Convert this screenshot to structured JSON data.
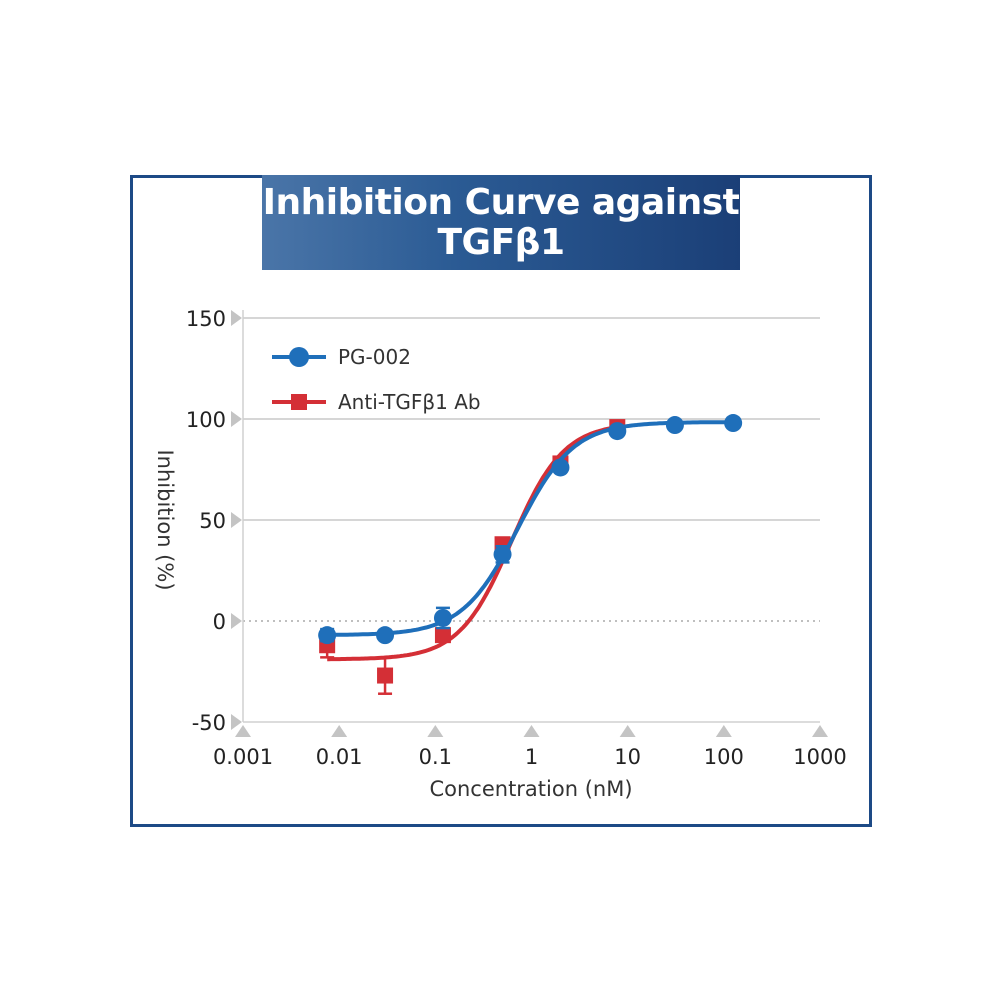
{
  "chart_data": {
    "type": "line",
    "title": "Inhibition Curve against TGFβ1",
    "title_lines": [
      "Inhibition Curve against",
      "TGFβ1"
    ],
    "xlabel": "Concentration (nM)",
    "ylabel": "Inhibition (%)",
    "x_scale": "log",
    "xlim": [
      0.001,
      1000
    ],
    "ylim": [
      -50,
      150
    ],
    "x_ticks": [
      0.001,
      0.01,
      0.1,
      1,
      10,
      100,
      1000
    ],
    "x_tick_labels": [
      "0.001",
      "0.01",
      "0.1",
      "1",
      "10",
      "100",
      "1000"
    ],
    "y_ticks": [
      -50,
      0,
      50,
      100,
      150
    ],
    "y_tick_labels": [
      "-50",
      "0",
      "50",
      "100",
      "150"
    ],
    "grid": "horizontal",
    "zero_line": "dotted",
    "legend_position": "top-left",
    "series": [
      {
        "name": "PG-002",
        "color": "#1f6fba",
        "marker": "circle",
        "x": [
          0.0075,
          0.03,
          0.12,
          0.5,
          2.0,
          7.8,
          31,
          125
        ],
        "y": [
          -7,
          -7,
          1.5,
          33,
          76,
          94,
          97,
          98
        ],
        "err": [
          3,
          1,
          5,
          4,
          2,
          2,
          2,
          1
        ],
        "fit": {
          "bottom": -7,
          "top": 98.5,
          "ec50": 0.72,
          "hill": 1.5
        }
      },
      {
        "name": "Anti-TGFβ1 Ab",
        "color": "#d42f36",
        "marker": "square",
        "x": [
          0.0075,
          0.03,
          0.12,
          0.5,
          2.0,
          7.8
        ],
        "y": [
          -12,
          -27,
          -7,
          38,
          78,
          96
        ],
        "err": [
          6,
          9,
          2,
          2,
          1,
          1
        ],
        "fit": {
          "bottom": -19,
          "top": 98,
          "ec50": 0.62,
          "hill": 1.6
        }
      }
    ]
  }
}
